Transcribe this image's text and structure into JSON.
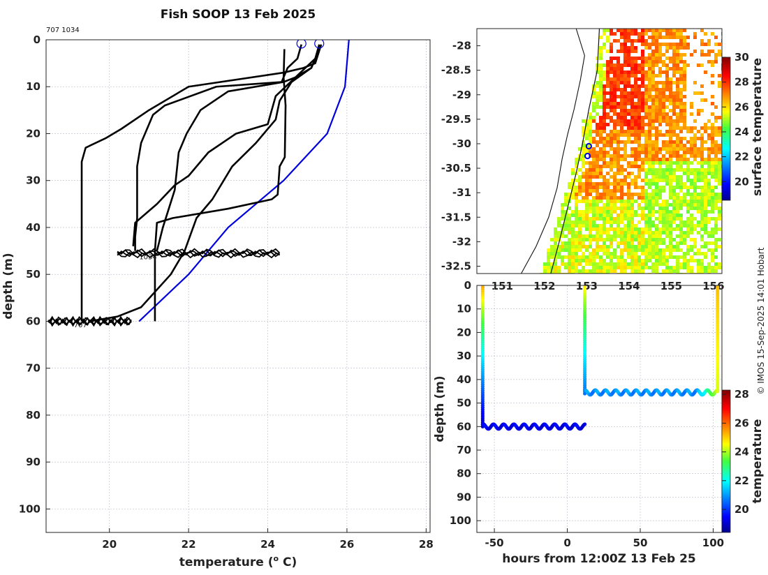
{
  "chart_data": [
    {
      "type": "line",
      "title": "Fish SOOP 13 Feb 2025",
      "xlabel": "temperature (",
      "xlabel_sup": "o",
      "xlabel_tail": " C)",
      "ylabel": "depth (m)",
      "xlim": [
        18.4,
        28.1
      ],
      "ylim": [
        105,
        0
      ],
      "xticks": [
        20,
        22,
        24,
        26,
        28
      ],
      "yticks": [
        0,
        10,
        20,
        30,
        40,
        50,
        60,
        70,
        80,
        90,
        100
      ],
      "label_top": "707 1034",
      "label_1034": "1034",
      "label_707": "707",
      "grid": true,
      "climatology_color": "#0000dd",
      "profile_color": "#000000",
      "profiles": [
        {
          "values": [
            [
              24.42,
              2
            ],
            [
              24.4,
              8
            ],
            [
              24.45,
              14
            ],
            [
              24.43,
              25
            ],
            [
              24.3,
              27
            ],
            [
              24.25,
              33
            ],
            [
              24.1,
              34
            ],
            [
              23.0,
              36
            ],
            [
              21.6,
              38
            ],
            [
              21.2,
              39
            ],
            [
              21.15,
              45
            ],
            [
              21.15,
              60
            ]
          ]
        },
        {
          "values": [
            [
              24.85,
              1
            ],
            [
              24.75,
              4
            ],
            [
              24.5,
              6
            ],
            [
              24.35,
              9
            ],
            [
              22.7,
              10
            ],
            [
              21.4,
              14
            ],
            [
              21.1,
              16
            ],
            [
              20.8,
              22
            ],
            [
              20.7,
              27
            ],
            [
              20.7,
              31
            ],
            [
              20.7,
              38
            ],
            [
              20.65,
              42
            ],
            [
              20.65,
              45
            ]
          ]
        },
        {
          "values": [
            [
              25.3,
              1
            ],
            [
              25.2,
              4
            ],
            [
              24.95,
              6
            ],
            [
              24.7,
              8
            ],
            [
              24.4,
              9
            ],
            [
              23.0,
              11
            ],
            [
              22.3,
              15
            ],
            [
              21.95,
              20
            ],
            [
              21.75,
              24
            ],
            [
              21.65,
              32
            ],
            [
              21.5,
              36
            ],
            [
              21.35,
              40
            ],
            [
              21.2,
              45
            ]
          ]
        },
        {
          "values": [
            [
              25.35,
              1
            ],
            [
              25.2,
              5
            ],
            [
              24.9,
              6
            ],
            [
              24.4,
              7
            ],
            [
              22.0,
              10
            ],
            [
              21.0,
              15
            ],
            [
              20.3,
              19
            ],
            [
              19.9,
              21
            ],
            [
              19.4,
              23
            ],
            [
              19.3,
              26
            ],
            [
              19.3,
              40
            ],
            [
              19.3,
              60
            ]
          ]
        },
        {
          "values": [
            [
              25.3,
              2
            ],
            [
              25.1,
              6
            ],
            [
              24.7,
              8
            ],
            [
              24.2,
              12
            ],
            [
              24.0,
              18
            ],
            [
              23.2,
              20
            ],
            [
              22.5,
              24
            ],
            [
              22.0,
              29
            ],
            [
              21.65,
              31
            ],
            [
              21.2,
              35
            ],
            [
              20.65,
              39
            ],
            [
              20.6,
              44
            ]
          ]
        },
        {
          "values": [
            [
              25.3,
              2
            ],
            [
              25.1,
              6
            ],
            [
              24.6,
              9
            ],
            [
              24.3,
              13
            ],
            [
              24.2,
              17
            ],
            [
              23.7,
              22
            ],
            [
              23.1,
              27
            ],
            [
              22.6,
              34
            ],
            [
              22.2,
              38
            ],
            [
              21.9,
              45
            ],
            [
              21.55,
              50
            ],
            [
              20.8,
              57
            ],
            [
              20.2,
              59
            ],
            [
              19.5,
              60
            ]
          ]
        }
      ],
      "climatology": [
        [
          26.05,
          0
        ],
        [
          25.95,
          10
        ],
        [
          25.5,
          20
        ],
        [
          24.4,
          30
        ],
        [
          23.0,
          40
        ],
        [
          22.0,
          50
        ],
        [
          20.75,
          60
        ]
      ],
      "bottom_traces": [
        {
          "name": "1034",
          "depth": 45.5,
          "x_from": 20.2,
          "x_to": 24.3
        },
        {
          "name": "707",
          "depth": 60.0,
          "x_from": 18.45,
          "x_to": 20.55
        }
      ],
      "surface_markers": [
        [
          24.85,
          0.8
        ],
        [
          25.3,
          0.8
        ]
      ]
    },
    {
      "type": "heatmap",
      "title": "",
      "colorbar_label": "surface temperature",
      "ylim": [
        -32.65,
        -27.65
      ],
      "xlim": [
        150.4,
        156.2
      ],
      "yticks": [
        -28,
        -28.5,
        -29,
        -29.5,
        -30,
        -30.5,
        -31,
        -31.5,
        -32,
        -32.5
      ],
      "ytick_labels": [
        "-28",
        "-28.5",
        "-29",
        "-29.5",
        "-30",
        "-30.5",
        "-31",
        "-31.5",
        "-32",
        "-32.5"
      ],
      "xticks": [
        151,
        152,
        153,
        154,
        155,
        156
      ],
      "xtick_labels": [
        "151",
        "152",
        "153",
        "154",
        "155",
        "156"
      ],
      "colorbar_ticks": [
        20,
        22,
        24,
        26,
        28,
        30
      ],
      "colorbar_range": [
        18.5,
        30
      ],
      "positions": [
        [
          153.05,
          -30.05
        ],
        [
          153.02,
          -30.25
        ]
      ],
      "marker_color": "#0000dd"
    },
    {
      "type": "scatter",
      "title": "",
      "xlabel": "hours from 12:00Z 13 Feb 25",
      "ylabel": "depth (m)",
      "colorbar_label": "temperature",
      "xlim": [
        -62,
        106
      ],
      "ylim": [
        105,
        0
      ],
      "xticks": [
        -50,
        0,
        50,
        100
      ],
      "yticks": [
        0,
        10,
        20,
        30,
        40,
        50,
        60,
        70,
        80,
        90,
        100
      ],
      "colorbar_ticks": [
        20,
        22,
        24,
        26,
        28
      ],
      "colorbar_range": [
        18.4,
        28.3
      ],
      "segments": [
        {
          "x_from": -58,
          "x_to": -58,
          "depth_from": 0,
          "depth_to": 60,
          "t_top": 25.5,
          "t_bottom": 19.0
        },
        {
          "x_from": -58,
          "x_to": 12,
          "depth_mean": 60,
          "amplitude": 1.0,
          "t_mean": 19.3,
          "t_amp": 0.7
        },
        {
          "x_from": 12,
          "x_to": 12,
          "depth_from": 0,
          "depth_to": 46,
          "t_top": 24.8,
          "t_bottom": 20.6
        },
        {
          "x_from": 12,
          "x_to": 103,
          "depth_mean": 45.5,
          "amplitude": 1.0,
          "t_mean": 20.9,
          "t_amp": 0.7,
          "t_end": 24.3
        },
        {
          "x_from": 103,
          "x_to": 103,
          "depth_from": 0,
          "depth_to": 45,
          "t_top": 25.2,
          "t_bottom": 24.3
        }
      ]
    }
  ],
  "credit": "© IMOS 15-Sep-2025 14:01 Hobart"
}
